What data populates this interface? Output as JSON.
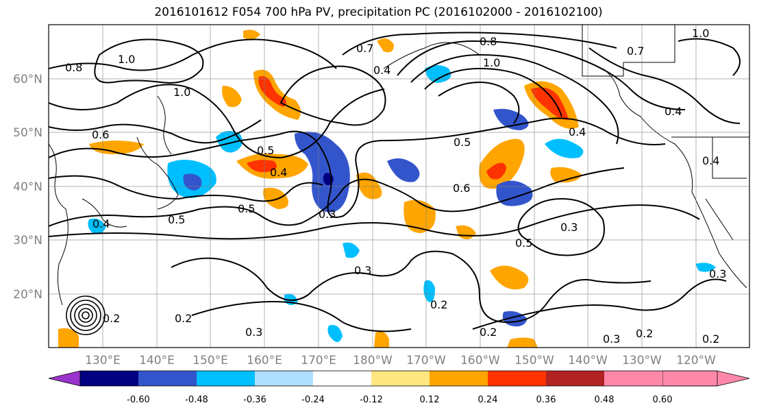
{
  "title": "2016101612 F054 700 hPa PV, precipitation PC (2016102000 - 2016102100)",
  "map": {
    "lat_labels": [
      "60°N",
      "50°N",
      "40°N",
      "30°N",
      "20°N"
    ],
    "lon_labels": [
      "130°E",
      "140°E",
      "150°E",
      "160°E",
      "170°E",
      "180°W",
      "170°W",
      "160°W",
      "150°W",
      "140°W",
      "130°W",
      "120°W"
    ],
    "contour_labels": [
      "0.8",
      "1.0",
      "1.0",
      "0.6",
      "0.5",
      "0.4",
      "0.5",
      "0.5",
      "0.3",
      "0.3",
      "0.5",
      "0.6",
      "0.3",
      "0.5",
      "0.3",
      "0.2",
      "0.2",
      "0.3",
      "0.2",
      "0.2",
      "0.3",
      "0.4",
      "0.4",
      "1.0",
      "0.8",
      "0.7",
      "0.4",
      "1.0",
      "0.7",
      "0.4",
      "0.2",
      "0.4",
      "0.2"
    ]
  },
  "colorbar": {
    "ticks": [
      "-0.60",
      "-0.48",
      "-0.36",
      "-0.24",
      "-0.12",
      "0.12",
      "0.24",
      "0.36",
      "0.48",
      "0.60"
    ],
    "colors": [
      "#9933cc",
      "#000080",
      "#3355cc",
      "#00bfff",
      "#b0e0ff",
      "#ffffff",
      "#ffe680",
      "#ffa500",
      "#ff3300",
      "#b22222",
      "#ff88aa"
    ]
  }
}
